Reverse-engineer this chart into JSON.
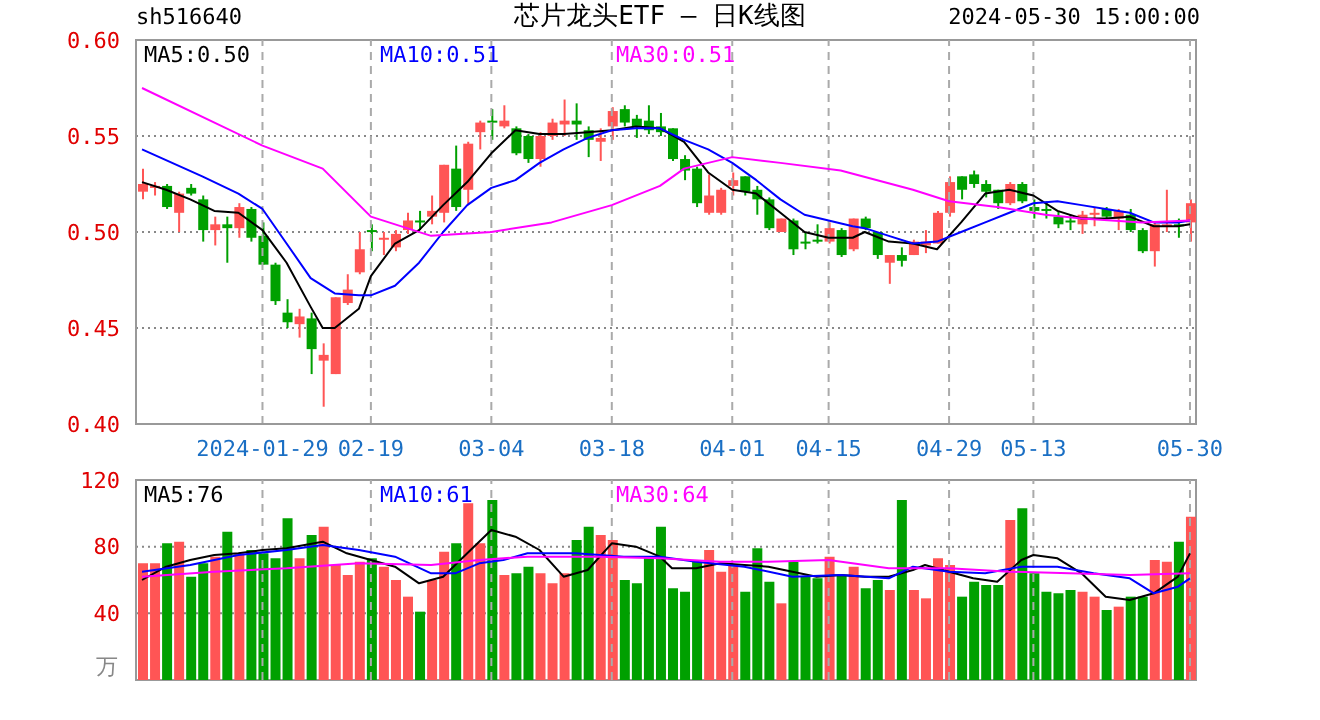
{
  "chart_data": [
    {
      "type": "candlestick",
      "title": "芯片龙头ETF — 日K线图",
      "subtitle": "2024-05-30 15:00:00",
      "annotations": [
        "sh516640"
      ],
      "categories": [
        null,
        null,
        null,
        null,
        null,
        null,
        null,
        null,
        null,
        null,
        "2024-01-29",
        null,
        null,
        null,
        null,
        null,
        null,
        null,
        null,
        "02-19",
        null,
        null,
        null,
        null,
        null,
        null,
        null,
        null,
        null,
        "03-04",
        null,
        null,
        null,
        null,
        null,
        null,
        null,
        null,
        null,
        "03-18",
        null,
        null,
        null,
        null,
        null,
        null,
        null,
        null,
        null,
        "04-01",
        null,
        null,
        null,
        null,
        null,
        null,
        null,
        "04-15",
        null,
        null,
        null,
        null,
        null,
        null,
        null,
        null,
        null,
        "04-29",
        null,
        null,
        null,
        null,
        null,
        null,
        "05-13",
        null,
        null,
        null,
        null,
        null,
        null,
        null,
        null,
        null,
        null,
        null,
        null,
        "05-30"
      ],
      "ohlc": [
        [
          0.521,
          0.533,
          0.517,
          0.525
        ],
        [
          0.523,
          0.526,
          0.519,
          0.524
        ],
        [
          0.524,
          0.525,
          0.512,
          0.513
        ],
        [
          0.51,
          0.521,
          0.5,
          0.52
        ],
        [
          0.523,
          0.525,
          0.519,
          0.52
        ],
        [
          0.517,
          0.519,
          0.495,
          0.501
        ],
        [
          0.501,
          0.508,
          0.493,
          0.504
        ],
        [
          0.504,
          0.508,
          0.484,
          0.502
        ],
        [
          0.502,
          0.515,
          0.497,
          0.513
        ],
        [
          0.512,
          0.513,
          0.495,
          0.497
        ],
        [
          0.498,
          0.505,
          0.483,
          0.483
        ],
        [
          0.483,
          0.484,
          0.462,
          0.464
        ],
        [
          0.458,
          0.465,
          0.45,
          0.453
        ],
        [
          0.452,
          0.46,
          0.445,
          0.456
        ],
        [
          0.455,
          0.458,
          0.426,
          0.439
        ],
        [
          0.433,
          0.442,
          0.409,
          0.436
        ],
        [
          0.426,
          0.466,
          0.426,
          0.466
        ],
        [
          0.463,
          0.478,
          0.462,
          0.47
        ],
        [
          0.479,
          0.5,
          0.478,
          0.491
        ],
        [
          0.501,
          0.504,
          0.49,
          0.5
        ],
        [
          0.496,
          0.5,
          0.488,
          0.497
        ],
        [
          0.492,
          0.501,
          0.49,
          0.499
        ],
        [
          0.501,
          0.51,
          0.499,
          0.506
        ],
        [
          0.506,
          0.511,
          0.501,
          0.505
        ],
        [
          0.508,
          0.519,
          0.504,
          0.511
        ],
        [
          0.51,
          0.535,
          0.505,
          0.535
        ],
        [
          0.533,
          0.545,
          0.511,
          0.513
        ],
        [
          0.522,
          0.547,
          0.514,
          0.546
        ],
        [
          0.552,
          0.558,
          0.543,
          0.557
        ],
        [
          0.558,
          0.564,
          0.548,
          0.557
        ],
        [
          0.555,
          0.566,
          0.554,
          0.558
        ],
        [
          0.554,
          0.555,
          0.54,
          0.541
        ],
        [
          0.55,
          0.551,
          0.536,
          0.538
        ],
        [
          0.538,
          0.552,
          0.534,
          0.55
        ],
        [
          0.55,
          0.559,
          0.548,
          0.557
        ],
        [
          0.556,
          0.569,
          0.55,
          0.558
        ],
        [
          0.558,
          0.567,
          0.548,
          0.556
        ],
        [
          0.553,
          0.555,
          0.539,
          0.548
        ],
        [
          0.547,
          0.554,
          0.537,
          0.549
        ],
        [
          0.555,
          0.565,
          0.548,
          0.563
        ],
        [
          0.564,
          0.566,
          0.555,
          0.557
        ],
        [
          0.559,
          0.561,
          0.549,
          0.555
        ],
        [
          0.558,
          0.566,
          0.551,
          0.553
        ],
        [
          0.555,
          0.562,
          0.55,
          0.552
        ],
        [
          0.554,
          0.554,
          0.537,
          0.538
        ],
        [
          0.538,
          0.54,
          0.527,
          0.532
        ],
        [
          0.533,
          0.534,
          0.513,
          0.515
        ],
        [
          0.51,
          0.53,
          0.509,
          0.519
        ],
        [
          0.51,
          0.523,
          0.509,
          0.522
        ],
        [
          0.524,
          0.531,
          0.519,
          0.527
        ],
        [
          0.529,
          0.529,
          0.519,
          0.521
        ],
        [
          0.522,
          0.524,
          0.509,
          0.517
        ],
        [
          0.517,
          0.518,
          0.501,
          0.502
        ],
        [
          0.5,
          0.507,
          0.5,
          0.507
        ],
        [
          0.506,
          0.507,
          0.488,
          0.491
        ],
        [
          0.495,
          0.5,
          0.491,
          0.494
        ],
        [
          0.496,
          0.504,
          0.494,
          0.495
        ],
        [
          0.495,
          0.505,
          0.494,
          0.502
        ],
        [
          0.501,
          0.502,
          0.487,
          0.488
        ],
        [
          0.491,
          0.507,
          0.49,
          0.507
        ],
        [
          0.507,
          0.508,
          0.501,
          0.502
        ],
        [
          0.5,
          0.5,
          0.486,
          0.488
        ],
        [
          0.484,
          0.488,
          0.473,
          0.488
        ],
        [
          0.488,
          0.492,
          0.482,
          0.485
        ],
        [
          0.488,
          0.496,
          0.488,
          0.495
        ],
        [
          0.493,
          0.501,
          0.489,
          0.495
        ],
        [
          0.494,
          0.511,
          0.494,
          0.51
        ],
        [
          0.51,
          0.529,
          0.508,
          0.526
        ],
        [
          0.529,
          0.529,
          0.517,
          0.522
        ],
        [
          0.53,
          0.532,
          0.523,
          0.525
        ],
        [
          0.525,
          0.527,
          0.518,
          0.521
        ],
        [
          0.522,
          0.522,
          0.512,
          0.515
        ],
        [
          0.515,
          0.526,
          0.514,
          0.525
        ],
        [
          0.525,
          0.526,
          0.515,
          0.516
        ],
        [
          0.513,
          0.517,
          0.507,
          0.511
        ],
        [
          0.512,
          0.516,
          0.507,
          0.511
        ],
        [
          0.508,
          0.511,
          0.502,
          0.504
        ],
        [
          0.506,
          0.509,
          0.501,
          0.505
        ],
        [
          0.504,
          0.511,
          0.499,
          0.509
        ],
        [
          0.509,
          0.513,
          0.503,
          0.51
        ],
        [
          0.512,
          0.513,
          0.507,
          0.508
        ],
        [
          0.507,
          0.512,
          0.501,
          0.511
        ],
        [
          0.509,
          0.512,
          0.5,
          0.501
        ],
        [
          0.501,
          0.502,
          0.489,
          0.49
        ],
        [
          0.49,
          0.505,
          0.482,
          0.504
        ],
        [
          0.503,
          0.522,
          0.5,
          0.504
        ],
        [
          0.504,
          0.507,
          0.497,
          0.503
        ],
        [
          0.505,
          0.517,
          0.495,
          0.515
        ]
      ],
      "colors": [
        "#ff5555",
        "#ff5555",
        "#00a000",
        "#ff5555",
        "#00a000",
        "#00a000",
        "#ff5555",
        "#00a000",
        "#ff5555",
        "#00a000",
        "#00a000",
        "#00a000",
        "#00a000",
        "#ff5555",
        "#00a000",
        "#ff5555",
        "#ff5555",
        "#ff5555",
        "#ff5555",
        "#00a000",
        "#ff5555",
        "#ff5555",
        "#ff5555",
        "#00a000",
        "#ff5555",
        "#ff5555",
        "#00a000",
        "#ff5555",
        "#ff5555",
        "#00a000",
        "#ff5555",
        "#00a000",
        "#00a000",
        "#ff5555",
        "#ff5555",
        "#ff5555",
        "#00a000",
        "#00a000",
        "#ff5555",
        "#ff5555",
        "#00a000",
        "#00a000",
        "#00a000",
        "#00a000",
        "#00a000",
        "#00a000",
        "#00a000",
        "#ff5555",
        "#ff5555",
        "#ff5555",
        "#00a000",
        "#00a000",
        "#00a000",
        "#ff5555",
        "#00a000",
        "#00a000",
        "#00a000",
        "#ff5555",
        "#00a000",
        "#ff5555",
        "#00a000",
        "#00a000",
        "#ff5555",
        "#00a000",
        "#ff5555",
        "#ff5555",
        "#ff5555",
        "#ff5555",
        "#00a000",
        "#00a000",
        "#00a000",
        "#00a000",
        "#ff5555",
        "#00a000",
        "#00a000",
        "#00a000",
        "#00a000",
        "#00a000",
        "#ff5555",
        "#ff5555",
        "#00a000",
        "#ff5555",
        "#00a000",
        "#00a000",
        "#ff5555",
        "#ff5555",
        "#00a000",
        "#ff5555"
      ],
      "series": [
        {
          "type": "line",
          "name": "MA5:0.50",
          "color": "#000000",
          "values": [
            0.526,
            null,
            0.522,
            null,
            0.517,
            null,
            0.511,
            null,
            0.51,
            null,
            0.501,
            null,
            0.484,
            null,
            0.461,
            0.45,
            0.45,
            null,
            0.46,
            0.477,
            null,
            0.494,
            null,
            0.501,
            null,
            0.514,
            null,
            0.526,
            null,
            0.541,
            null,
            0.553,
            null,
            0.551,
            null,
            0.551,
            null,
            0.552,
            null,
            0.553,
            null,
            0.555,
            null,
            0.554,
            null,
            0.547,
            null,
            0.531,
            null,
            0.522,
            null,
            0.52,
            null,
            0.51,
            null,
            0.5,
            null,
            0.497,
            null,
            0.497,
            0.5,
            null,
            0.495,
            null,
            0.494,
            null,
            0.491,
            null,
            0.505,
            null,
            0.52,
            null,
            0.522,
            null,
            0.519,
            null,
            0.511,
            null,
            0.507,
            null,
            0.507,
            null,
            0.508,
            null,
            0.503,
            null,
            0.503,
            0.504
          ]
        },
        {
          "type": "line",
          "name": "MA10:0.51",
          "color": "#0000ff",
          "values": [
            0.543,
            null,
            null,
            null,
            null,
            0.529,
            null,
            null,
            0.52,
            null,
            0.512,
            null,
            0.494,
            null,
            0.476,
            null,
            0.468,
            null,
            0.467,
            0.467,
            null,
            0.472,
            null,
            0.484,
            null,
            0.5,
            null,
            0.514,
            null,
            0.523,
            null,
            0.527,
            null,
            0.536,
            null,
            0.543,
            null,
            0.549,
            null,
            0.553,
            null,
            0.554,
            null,
            0.554,
            null,
            0.548,
            null,
            0.543,
            null,
            0.536,
            null,
            0.527,
            null,
            0.517,
            null,
            0.509,
            null,
            0.506,
            null,
            0.503,
            0.502,
            null,
            0.498,
            null,
            0.494,
            null,
            0.495,
            null,
            0.5,
            null,
            0.505,
            null,
            0.51,
            null,
            0.515,
            null,
            0.516,
            null,
            0.514,
            null,
            0.512,
            null,
            0.51,
            null,
            0.505,
            null,
            0.505,
            0.506
          ]
        },
        {
          "type": "line",
          "name": "MA30:0.51",
          "color": "#ff00ff",
          "values": [
            0.575,
            null,
            null,
            null,
            null,
            null,
            null,
            null,
            null,
            null,
            0.545,
            null,
            null,
            null,
            null,
            0.533,
            null,
            null,
            null,
            0.508,
            null,
            null,
            null,
            null,
            0.498,
            null,
            null,
            null,
            null,
            0.5,
            null,
            null,
            null,
            null,
            0.505,
            null,
            null,
            null,
            null,
            0.514,
            null,
            null,
            null,
            0.524,
            null,
            0.533,
            null,
            null,
            null,
            0.539,
            null,
            null,
            null,
            0.536,
            null,
            null,
            null,
            null,
            0.532,
            null,
            null,
            null,
            null,
            null,
            0.522,
            null,
            null,
            0.516,
            null,
            null,
            null,
            0.513,
            null,
            null,
            null,
            0.509,
            null,
            null,
            0.507,
            null,
            null,
            null,
            null,
            0.505,
            null,
            null,
            null,
            0.506
          ]
        }
      ],
      "ylim": [
        0.4,
        0.6
      ],
      "yticks": [
        {
          "value": 0.4,
          "label": "0.40"
        },
        {
          "value": 0.45,
          "label": "0.45"
        },
        {
          "value": 0.5,
          "label": "0.50"
        },
        {
          "value": 0.55,
          "label": "0.55"
        },
        {
          "value": 0.6,
          "label": "0.60"
        }
      ],
      "grid": true,
      "legend": "top"
    },
    {
      "type": "bar",
      "ylabel": "万",
      "tick_labels": "y",
      "categories": [
        null,
        null,
        null,
        null,
        null,
        null,
        null,
        null,
        null,
        null,
        null,
        null,
        null,
        null,
        null,
        null,
        null,
        null,
        null,
        null,
        null,
        null,
        null,
        null,
        null,
        null,
        null,
        null,
        null,
        null,
        null,
        null,
        null,
        null,
        null,
        null,
        null,
        null,
        null,
        null,
        null,
        null,
        null,
        null,
        null,
        null,
        null,
        null,
        null,
        null,
        null,
        null,
        null,
        null,
        null,
        null,
        null,
        null,
        null,
        null,
        null,
        null,
        null,
        null,
        null,
        null,
        null,
        null,
        null,
        null,
        null,
        null,
        null,
        null,
        null,
        null,
        null,
        null,
        null,
        null,
        null,
        null,
        null,
        null,
        null,
        null,
        null,
        null
      ],
      "values": [
        70,
        70,
        82,
        83,
        62,
        70,
        74,
        89,
        76,
        78,
        76,
        73,
        97,
        73,
        87,
        92,
        69,
        63,
        71,
        73,
        68,
        60,
        50,
        41,
        60,
        77,
        82,
        106,
        82,
        108,
        63,
        64,
        68,
        64,
        58,
        64,
        84,
        92,
        87,
        84,
        60,
        58,
        74,
        92,
        55,
        53,
        71,
        78,
        65,
        69,
        53,
        79,
        59,
        46,
        71,
        62,
        61,
        74,
        63,
        68,
        55,
        60,
        54,
        108,
        54,
        49,
        73,
        69,
        50,
        59,
        57,
        57,
        96,
        103,
        64,
        53,
        52,
        54,
        53,
        50,
        42,
        44,
        50,
        50,
        72,
        71,
        83,
        98
      ],
      "colors": [
        "#ff5555",
        "#ff5555",
        "#00a000",
        "#ff5555",
        "#00a000",
        "#00a000",
        "#ff5555",
        "#00a000",
        "#ff5555",
        "#00a000",
        "#00a000",
        "#00a000",
        "#00a000",
        "#ff5555",
        "#00a000",
        "#ff5555",
        "#ff5555",
        "#ff5555",
        "#ff5555",
        "#00a000",
        "#ff5555",
        "#ff5555",
        "#ff5555",
        "#00a000",
        "#ff5555",
        "#ff5555",
        "#00a000",
        "#ff5555",
        "#ff5555",
        "#00a000",
        "#ff5555",
        "#00a000",
        "#00a000",
        "#ff5555",
        "#ff5555",
        "#ff5555",
        "#00a000",
        "#00a000",
        "#ff5555",
        "#ff5555",
        "#00a000",
        "#00a000",
        "#00a000",
        "#00a000",
        "#00a000",
        "#00a000",
        "#00a000",
        "#ff5555",
        "#ff5555",
        "#ff5555",
        "#00a000",
        "#00a000",
        "#00a000",
        "#ff5555",
        "#00a000",
        "#00a000",
        "#00a000",
        "#ff5555",
        "#00a000",
        "#ff5555",
        "#00a000",
        "#00a000",
        "#ff5555",
        "#00a000",
        "#ff5555",
        "#ff5555",
        "#ff5555",
        "#ff5555",
        "#00a000",
        "#00a000",
        "#00a000",
        "#00a000",
        "#ff5555",
        "#00a000",
        "#00a000",
        "#00a000",
        "#00a000",
        "#00a000",
        "#ff5555",
        "#ff5555",
        "#00a000",
        "#ff5555",
        "#00a000",
        "#00a000",
        "#ff5555",
        "#ff5555",
        "#00a000",
        "#ff5555"
      ],
      "series": [
        {
          "type": "line",
          "name": "MA5:76",
          "color": "#000000",
          "values": [
            60,
            null,
            68,
            null,
            72,
            null,
            75,
            null,
            76,
            null,
            78,
            null,
            79,
            null,
            null,
            83,
            null,
            76,
            null,
            72,
            null,
            68,
            null,
            58,
            null,
            62,
            null,
            76,
            null,
            90,
            null,
            86,
            null,
            78,
            null,
            62,
            null,
            66,
            null,
            82,
            null,
            80,
            null,
            74,
            67,
            null,
            67,
            null,
            70,
            null,
            69,
            null,
            68,
            null,
            65,
            null,
            62,
            null,
            63,
            null,
            62,
            null,
            62,
            null,
            66,
            69,
            null,
            65,
            null,
            61,
            null,
            59,
            null,
            72,
            75,
            null,
            73,
            null,
            64,
            null,
            50,
            null,
            48,
            null,
            52,
            null,
            62,
            76
          ]
        },
        {
          "type": "line",
          "name": "MA10:61",
          "color": "#0000ff",
          "values": [
            65,
            null,
            null,
            null,
            69,
            null,
            null,
            null,
            75,
            null,
            null,
            null,
            78,
            null,
            null,
            81,
            null,
            null,
            78,
            null,
            null,
            74,
            null,
            null,
            64,
            null,
            64,
            null,
            70,
            null,
            72,
            null,
            76,
            null,
            null,
            null,
            76,
            null,
            null,
            null,
            74,
            null,
            null,
            74,
            null,
            null,
            71,
            null,
            null,
            null,
            68,
            null,
            null,
            null,
            62,
            null,
            null,
            null,
            63,
            null,
            null,
            null,
            61,
            null,
            68,
            null,
            null,
            65,
            null,
            null,
            64,
            null,
            null,
            68,
            null,
            null,
            68,
            null,
            null,
            64,
            null,
            null,
            61,
            null,
            52,
            null,
            56,
            61
          ]
        },
        {
          "type": "line",
          "name": "MA30:64",
          "color": "#ff00ff",
          "values": [
            62,
            null,
            null,
            null,
            null,
            null,
            65,
            null,
            null,
            null,
            null,
            null,
            67,
            null,
            null,
            null,
            null,
            null,
            70,
            null,
            null,
            null,
            null,
            null,
            69,
            null,
            null,
            null,
            72,
            null,
            null,
            null,
            74,
            null,
            null,
            null,
            null,
            null,
            74,
            null,
            null,
            null,
            null,
            73,
            null,
            null,
            null,
            null,
            71,
            null,
            null,
            null,
            71,
            null,
            null,
            null,
            null,
            72,
            null,
            null,
            null,
            null,
            67,
            null,
            null,
            null,
            null,
            67,
            null,
            null,
            null,
            null,
            65,
            null,
            null,
            null,
            null,
            64,
            null,
            null,
            null,
            null,
            63,
            null,
            null,
            null,
            null,
            64
          ]
        }
      ],
      "ylim": [
        0,
        120
      ],
      "yticks": [
        40,
        80,
        120
      ],
      "grid": true,
      "legend": "top"
    }
  ]
}
